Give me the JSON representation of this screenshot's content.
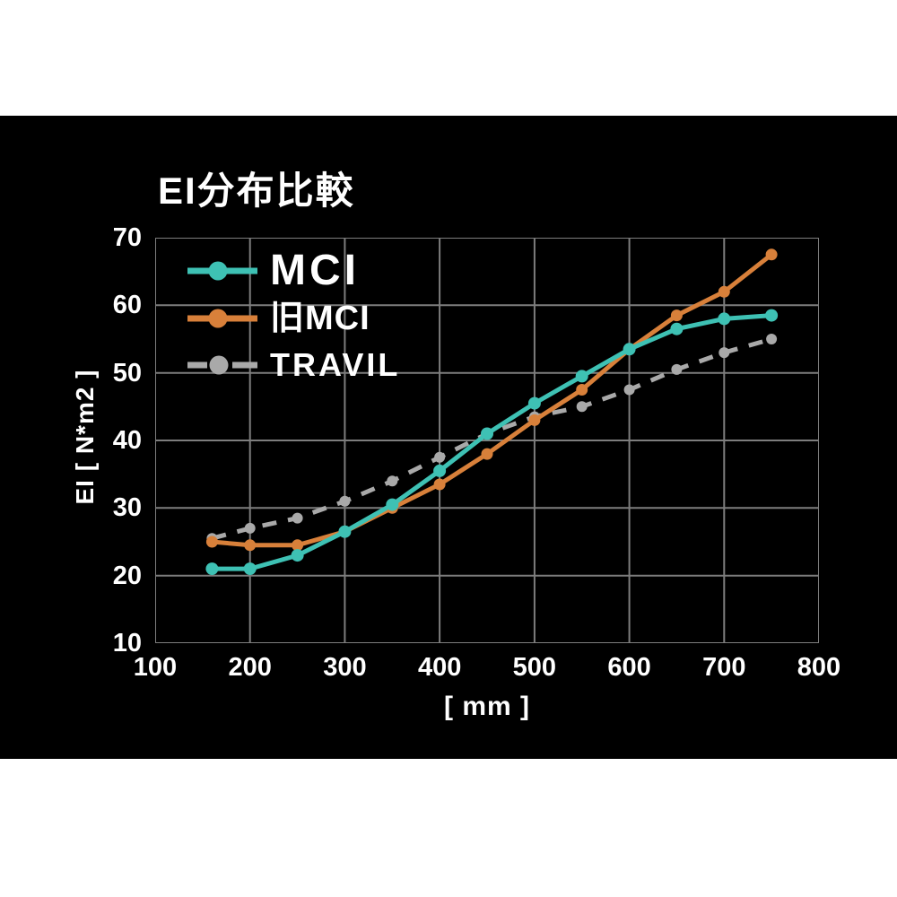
{
  "title": "EI分布比較",
  "colors": {
    "page_margin": "#ffffff",
    "background": "#000000",
    "grid": "#7d7d7d",
    "text": "#ffffff",
    "mci": "#3ec1b4",
    "old_mci": "#d8803a",
    "travil": "#a9a9a9"
  },
  "legend": {
    "items": [
      {
        "label": "MCI",
        "color": "#3ec1b4",
        "style": "solid"
      },
      {
        "label": "旧MCI",
        "color": "#d8803a",
        "style": "solid"
      },
      {
        "label": "TRAVIL",
        "color": "#a9a9a9",
        "style": "dashed"
      }
    ]
  },
  "axes": {
    "x_label": "[ mm ]",
    "y_label": "EI [ N*m2 ]",
    "x_ticks": [
      100,
      200,
      300,
      400,
      500,
      600,
      700,
      800
    ],
    "y_ticks": [
      70,
      60,
      50,
      40,
      30,
      20,
      10
    ]
  },
  "chart_data": {
    "type": "line",
    "title": "EI分布比較",
    "xlabel": "[ mm ]",
    "ylabel": "EI [ N*m2 ]",
    "xlim": [
      100,
      800
    ],
    "ylim": [
      10,
      70
    ],
    "grid": true,
    "legend_position": "top-left-inside",
    "x": [
      160,
      200,
      250,
      300,
      350,
      400,
      450,
      500,
      550,
      600,
      650,
      700,
      750
    ],
    "series": [
      {
        "name": "MCI",
        "color": "#3ec1b4",
        "dashed": false,
        "dot_radius": 7,
        "values": [
          21,
          21,
          23,
          26.5,
          30.5,
          35.5,
          41,
          45.5,
          49.5,
          53.5,
          56.5,
          58,
          58.5
        ]
      },
      {
        "name": "旧MCI",
        "color": "#d8803a",
        "dashed": false,
        "dot_radius": 6.5,
        "values": [
          25,
          24.5,
          24.5,
          26.5,
          30,
          33.5,
          38,
          43,
          47.5,
          53.5,
          58.5,
          62,
          67.5
        ]
      },
      {
        "name": "TRAVIL",
        "color": "#a9a9a9",
        "dashed": true,
        "dot_radius": 6,
        "values": [
          25.5,
          27,
          28.5,
          31,
          34,
          37.5,
          41,
          43.5,
          45,
          47.5,
          50.5,
          53,
          55
        ]
      }
    ]
  }
}
